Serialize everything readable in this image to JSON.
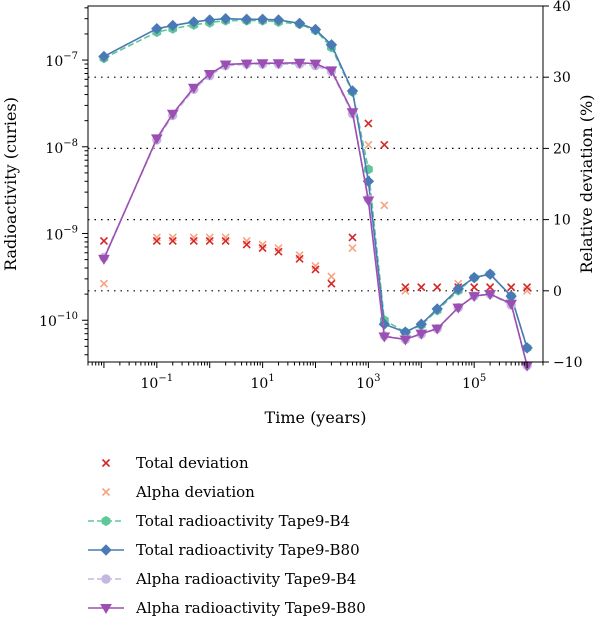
{
  "chart_data": {
    "type": "line",
    "title": "",
    "xlabel": "Time (years)",
    "ylabel": "Radioactivity (curies)",
    "ylabel_right": "Relative deviation (%)",
    "x_scale": "log",
    "y_scale": "log",
    "xlim": [
      0.005,
      2000000
    ],
    "ylim": [
      3.3e-11,
      4.2e-07
    ],
    "ylim_right": [
      -10,
      40
    ],
    "x_ticks": [
      {
        "value": 0.1,
        "base": "10",
        "exp": "−1"
      },
      {
        "value": 10,
        "base": "10",
        "exp": "1"
      },
      {
        "value": 1000,
        "base": "10",
        "exp": "3"
      },
      {
        "value": 100000,
        "base": "10",
        "exp": "5"
      }
    ],
    "y_ticks": [
      {
        "value": 1e-07,
        "base": "10",
        "exp": "−7"
      },
      {
        "value": 1e-08,
        "base": "10",
        "exp": "−8"
      },
      {
        "value": 1e-09,
        "base": "10",
        "exp": "−9"
      },
      {
        "value": 1e-10,
        "base": "10",
        "exp": "−10"
      }
    ],
    "y2_ticks": [
      "-10",
      "0",
      "10",
      "20",
      "30",
      "40"
    ],
    "grid_right_y": [
      0,
      10,
      20,
      30
    ],
    "legend_position": "below plot",
    "x": [
      0.01,
      0.1,
      0.2,
      0.5,
      1,
      2,
      5,
      10,
      20,
      50,
      100,
      200,
      500,
      1000,
      2000,
      5000,
      10000,
      20000,
      50000,
      100000,
      200000,
      500000,
      1000000
    ],
    "series": [
      {
        "name": "Total deviation",
        "axis": "right",
        "style": "x-marker",
        "color": "#d62728",
        "values": [
          7,
          7,
          7,
          7,
          7,
          7,
          6.5,
          6,
          5.5,
          4.5,
          3,
          1,
          7.5,
          23.5,
          20.5,
          0.5,
          0.5,
          0.5,
          0.5,
          0.5,
          0.5,
          0.5,
          0.5
        ]
      },
      {
        "name": "Alpha deviation",
        "axis": "right",
        "style": "x-marker",
        "color": "#f4a582",
        "values": [
          1,
          7.5,
          7.5,
          7.5,
          7.5,
          7.5,
          7,
          6.5,
          6,
          5,
          3.5,
          2,
          6,
          20.5,
          12,
          0,
          0.5,
          0.5,
          1,
          0.5,
          0.5,
          0.5,
          0
        ]
      },
      {
        "name": "Total radioactivity Tape9-B4",
        "axis": "left",
        "style": "dashed-hexagon",
        "color": "#5fc79a",
        "values": [
          1.05e-07,
          2.1e-07,
          2.3e-07,
          2.55e-07,
          2.7e-07,
          2.85e-07,
          2.85e-07,
          2.85e-07,
          2.75e-07,
          2.6e-07,
          2.2e-07,
          1.4e-07,
          4.3e-08,
          5.5e-09,
          1e-10,
          7.3e-11,
          8.8e-11,
          1.3e-10,
          2.2e-10,
          3.1e-10,
          3.4e-10,
          1.9e-10,
          4.8e-11
        ]
      },
      {
        "name": "Total radioactivity Tape9-B80",
        "axis": "left",
        "style": "solid-diamond",
        "color": "#4a7ab5",
        "values": [
          1.1e-07,
          2.3e-07,
          2.5e-07,
          2.75e-07,
          2.9e-07,
          3e-07,
          2.95e-07,
          2.95e-07,
          2.9e-07,
          2.65e-07,
          2.25e-07,
          1.5e-07,
          4.4e-08,
          4e-09,
          9e-11,
          7.3e-11,
          9e-11,
          1.35e-10,
          2.3e-10,
          3.1e-10,
          3.4e-10,
          1.9e-10,
          4.8e-11
        ]
      },
      {
        "name": "Alpha radioactivity Tape9-B4",
        "axis": "left",
        "style": "dashed-circle",
        "color": "#c5b8e0",
        "values": [
          5.3e-10,
          1.2e-08,
          2.3e-08,
          4.6e-08,
          6.6e-08,
          8.6e-08,
          9e-08,
          9e-08,
          9e-08,
          9e-08,
          8.6e-08,
          7.4e-08,
          2.4e-08,
          2.5e-09,
          6.6e-11,
          6e-11,
          6.9e-11,
          8e-11,
          1.4e-10,
          1.9e-10,
          2e-10,
          1.5e-10,
          3e-11
        ]
      },
      {
        "name": "Alpha radioactivity Tape9-B80",
        "axis": "left",
        "style": "solid-triangle",
        "color": "#9b4fb3",
        "values": [
          5.1e-10,
          1.25e-08,
          2.4e-08,
          4.8e-08,
          6.9e-08,
          8.9e-08,
          9.1e-08,
          9.2e-08,
          9.2e-08,
          9.3e-08,
          9.1e-08,
          7.6e-08,
          2.5e-08,
          2.4e-09,
          6.5e-11,
          6e-11,
          7e-11,
          8e-11,
          1.4e-10,
          1.9e-10,
          2e-10,
          1.55e-10,
          3e-11
        ]
      }
    ]
  }
}
